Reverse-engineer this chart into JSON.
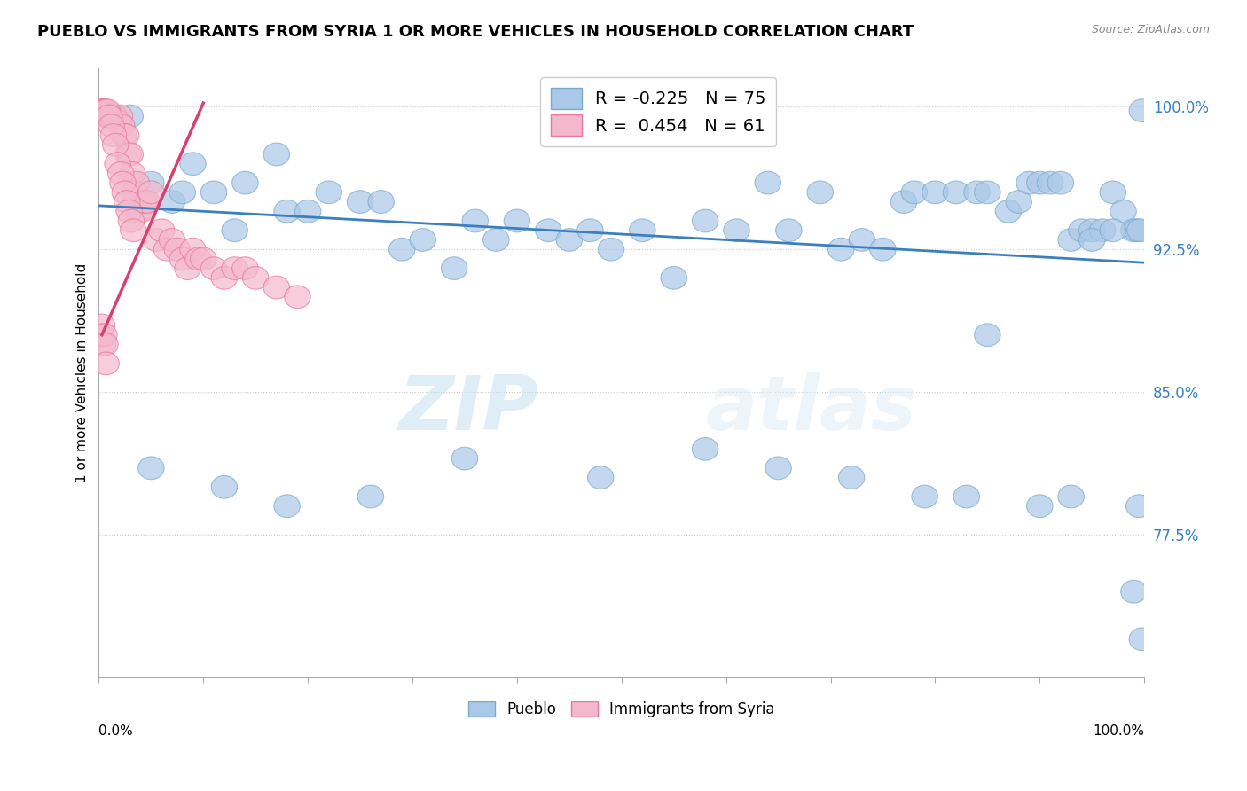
{
  "title": "PUEBLO VS IMMIGRANTS FROM SYRIA 1 OR MORE VEHICLES IN HOUSEHOLD CORRELATION CHART",
  "source": "Source: ZipAtlas.com",
  "ylabel": "1 or more Vehicles in Household",
  "yticks": [
    100.0,
    92.5,
    85.0,
    77.5
  ],
  "ytick_labels": [
    "100.0%",
    "92.5%",
    "85.0%",
    "77.5%"
  ],
  "xmin": 0.0,
  "xmax": 100.0,
  "ymin": 70.0,
  "ymax": 102.0,
  "legend_blue": "R = -0.225   N = 75",
  "legend_pink": "R =  0.454   N = 61",
  "legend_blue_label": "Pueblo",
  "legend_pink_label": "Immigrants from Syria",
  "watermark_zip": "ZIP",
  "watermark_atlas": "atlas",
  "blue_color": "#aac8e8",
  "pink_color": "#f4b8cc",
  "blue_edge_color": "#7aaacb",
  "pink_edge_color": "#e87899",
  "blue_line_color": "#3a7fc1",
  "pink_line_color": "#d94070",
  "blue_trend_x": [
    0.0,
    100.0
  ],
  "blue_trend_y": [
    94.8,
    91.8
  ],
  "pink_trend_x": [
    0.3,
    10.0
  ],
  "pink_trend_y": [
    88.0,
    100.2
  ],
  "blue_scatter_x": [
    3.0,
    5.0,
    7.0,
    8.0,
    9.0,
    11.0,
    13.0,
    14.0,
    17.0,
    18.0,
    20.0,
    22.0,
    25.0,
    27.0,
    29.0,
    31.0,
    34.0,
    36.0,
    38.0,
    40.0,
    43.0,
    45.0,
    47.0,
    49.0,
    52.0,
    55.0,
    58.0,
    61.0,
    64.0,
    66.0,
    69.0,
    71.0,
    73.0,
    75.0,
    77.0,
    78.0,
    80.0,
    82.0,
    84.0,
    85.0,
    87.0,
    88.0,
    89.0,
    90.0,
    91.0,
    92.0,
    93.0,
    94.0,
    95.0,
    96.0,
    97.0,
    98.0,
    99.0,
    99.3,
    99.6,
    99.8,
    5.0,
    12.0,
    18.0,
    26.0,
    35.0,
    48.0,
    58.0,
    65.0,
    72.0,
    79.0,
    83.0,
    85.0,
    90.0,
    93.0,
    95.0,
    97.0,
    99.0,
    99.5,
    99.8
  ],
  "blue_scatter_y": [
    99.5,
    96.0,
    95.0,
    95.5,
    97.0,
    95.5,
    93.5,
    96.0,
    97.5,
    94.5,
    94.5,
    95.5,
    95.0,
    95.0,
    92.5,
    93.0,
    91.5,
    94.0,
    93.0,
    94.0,
    93.5,
    93.0,
    93.5,
    92.5,
    93.5,
    91.0,
    94.0,
    93.5,
    96.0,
    93.5,
    95.5,
    92.5,
    93.0,
    92.5,
    95.0,
    95.5,
    95.5,
    95.5,
    95.5,
    95.5,
    94.5,
    95.0,
    96.0,
    96.0,
    96.0,
    96.0,
    93.0,
    93.5,
    93.5,
    93.5,
    95.5,
    94.5,
    93.5,
    93.5,
    93.5,
    99.8,
    81.0,
    80.0,
    79.0,
    79.5,
    81.5,
    80.5,
    82.0,
    81.0,
    80.5,
    79.5,
    79.5,
    88.0,
    79.0,
    79.5,
    93.0,
    93.5,
    74.5,
    79.0,
    72.0
  ],
  "pink_scatter_x": [
    0.3,
    0.5,
    0.7,
    0.9,
    1.1,
    1.3,
    1.5,
    1.7,
    1.9,
    2.0,
    2.2,
    2.4,
    2.6,
    2.8,
    3.0,
    3.2,
    3.4,
    3.6,
    3.8,
    4.0,
    4.3,
    4.6,
    5.0,
    5.5,
    6.0,
    6.5,
    7.0,
    7.5,
    8.0,
    8.5,
    9.0,
    9.5,
    10.0,
    11.0,
    12.0,
    13.0,
    14.0,
    15.0,
    17.0,
    19.0,
    0.4,
    0.6,
    0.8,
    1.0,
    1.2,
    1.4,
    1.6,
    1.8,
    2.1,
    2.3,
    2.5,
    2.7,
    2.9,
    3.1,
    3.3,
    0.2,
    0.3,
    0.4,
    0.5,
    0.6,
    0.7
  ],
  "pink_scatter_y": [
    99.8,
    99.8,
    99.5,
    99.5,
    99.5,
    99.5,
    99.5,
    99.3,
    99.2,
    99.5,
    99.0,
    98.5,
    98.5,
    97.5,
    97.5,
    96.5,
    95.5,
    96.0,
    94.5,
    94.5,
    95.0,
    95.0,
    95.5,
    93.0,
    93.5,
    92.5,
    93.0,
    92.5,
    92.0,
    91.5,
    92.5,
    92.0,
    92.0,
    91.5,
    91.0,
    91.5,
    91.5,
    91.0,
    90.5,
    90.0,
    99.8,
    99.8,
    99.8,
    99.5,
    99.0,
    98.5,
    98.0,
    97.0,
    96.5,
    96.0,
    95.5,
    95.0,
    94.5,
    94.0,
    93.5,
    88.0,
    88.5,
    87.5,
    88.0,
    87.5,
    86.5
  ]
}
